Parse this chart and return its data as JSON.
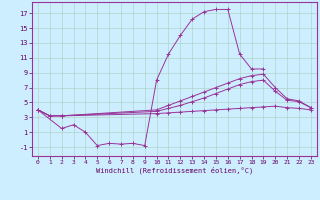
{
  "xlabel": "Windchill (Refroidissement éolien,°C)",
  "bg_color": "#cceeff",
  "grid_color": "#aaccbb",
  "line_color": "#993399",
  "x_ticks": [
    0,
    1,
    2,
    3,
    4,
    5,
    6,
    7,
    8,
    9,
    10,
    11,
    12,
    13,
    14,
    15,
    16,
    17,
    18,
    19,
    20,
    21,
    22,
    23
  ],
  "y_ticks": [
    -1,
    1,
    3,
    5,
    7,
    9,
    11,
    13,
    15,
    17
  ],
  "xlim": [
    -0.5,
    23.5
  ],
  "ylim": [
    -2.2,
    18.5
  ],
  "line0_x": [
    0,
    1,
    2,
    10,
    11,
    12,
    13,
    14,
    15,
    16,
    17,
    18,
    19,
    20,
    21,
    22,
    23
  ],
  "line0_y": [
    4.0,
    3.2,
    3.2,
    3.5,
    3.6,
    3.7,
    3.8,
    3.9,
    4.0,
    4.1,
    4.2,
    4.3,
    4.4,
    4.5,
    4.3,
    4.2,
    4.0
  ],
  "line1_x": [
    0,
    1,
    2,
    10,
    11,
    12,
    13,
    14,
    15,
    16,
    17,
    18,
    19,
    20,
    21,
    22,
    23
  ],
  "line1_y": [
    4.0,
    3.2,
    3.2,
    4.0,
    4.6,
    5.2,
    5.8,
    6.4,
    7.0,
    7.6,
    8.2,
    8.6,
    8.8,
    7.0,
    5.5,
    5.2,
    4.3
  ],
  "line2_x": [
    0,
    2,
    3,
    4,
    5,
    6,
    7,
    8,
    9,
    10,
    11,
    12,
    13,
    14,
    15,
    16,
    17,
    18,
    19
  ],
  "line2_y": [
    4.0,
    1.5,
    2.0,
    1.0,
    -0.8,
    -0.5,
    -0.6,
    -0.5,
    -0.8,
    8.0,
    11.5,
    14.0,
    16.2,
    17.2,
    17.5,
    17.5,
    11.5,
    9.5,
    9.5
  ],
  "line3_x": [
    0,
    1,
    2,
    10,
    11,
    12,
    13,
    14,
    15,
    16,
    17,
    18,
    19,
    20,
    21,
    22,
    23
  ],
  "line3_y": [
    4.0,
    3.2,
    3.2,
    3.8,
    4.2,
    4.6,
    5.1,
    5.6,
    6.2,
    6.8,
    7.4,
    7.8,
    8.0,
    6.5,
    5.3,
    5.1,
    4.3
  ]
}
